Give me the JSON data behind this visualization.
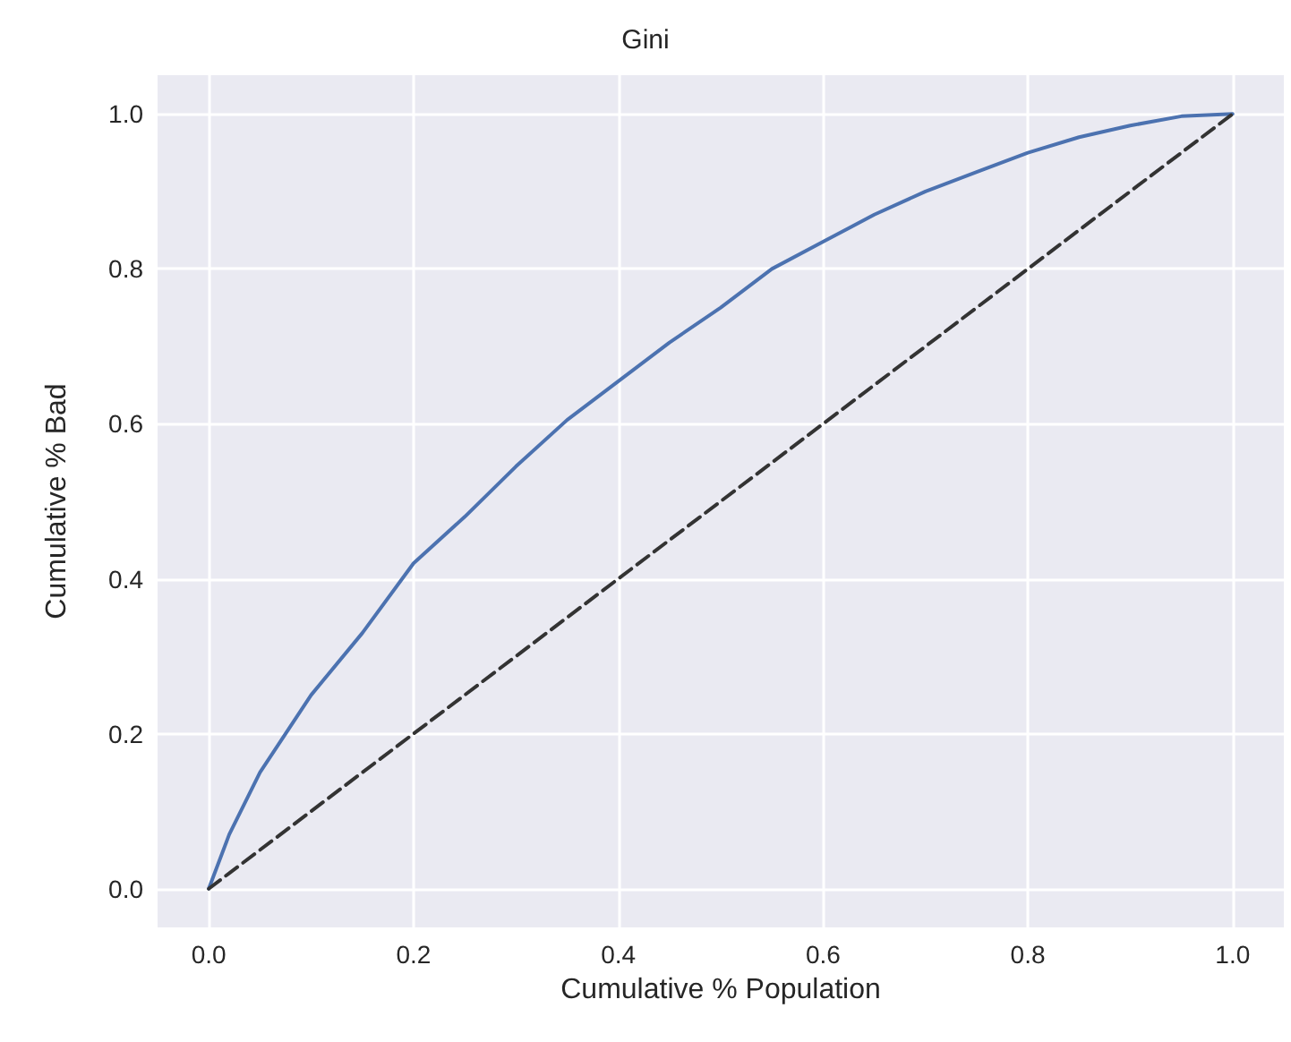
{
  "chart_data": {
    "type": "line",
    "title": "Gini",
    "xlabel": "Cumulative % Population",
    "ylabel": "Cumulative % Bad",
    "xlim": [
      -0.05,
      1.05
    ],
    "ylim": [
      -0.05,
      1.05
    ],
    "xticks": [
      {
        "value": 0,
        "label": "0.0"
      },
      {
        "value": 0.2,
        "label": "0.2"
      },
      {
        "value": 0.4,
        "label": "0.4"
      },
      {
        "value": 0.6,
        "label": "0.6"
      },
      {
        "value": 0.8,
        "label": "0.8"
      },
      {
        "value": 1,
        "label": "1.0"
      }
    ],
    "yticks": [
      {
        "value": 0,
        "label": "0.0"
      },
      {
        "value": 0.2,
        "label": "0.2"
      },
      {
        "value": 0.4,
        "label": "0.4"
      },
      {
        "value": 0.6,
        "label": "0.6"
      },
      {
        "value": 0.8,
        "label": "0.8"
      },
      {
        "value": 1,
        "label": "1.0"
      }
    ],
    "grid": true,
    "marker": "none",
    "series": [
      {
        "color": "#4c72b0",
        "line_style": "solid",
        "x": [
          0,
          0.02,
          0.05,
          0.1,
          0.15,
          0.2,
          0.25,
          0.3,
          0.35,
          0.4,
          0.45,
          0.5,
          0.55,
          0.6,
          0.65,
          0.7,
          0.75,
          0.8,
          0.85,
          0.9,
          0.95,
          1
        ],
        "values": [
          0,
          0.07,
          0.15,
          0.25,
          0.33,
          0.42,
          0.48,
          0.545,
          0.605,
          0.655,
          0.705,
          0.75,
          0.8,
          0.835,
          0.87,
          0.9,
          0.925,
          0.95,
          0.97,
          0.985,
          0.997,
          1
        ]
      },
      {
        "color": "#333333",
        "line_style": "dashed",
        "x": [
          0,
          1
        ],
        "values": [
          0,
          1
        ]
      }
    ]
  }
}
